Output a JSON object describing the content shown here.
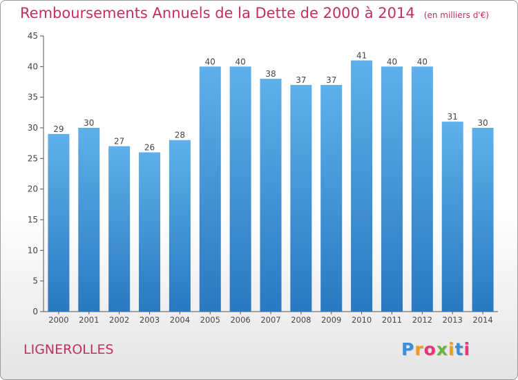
{
  "header": {
    "title": "Remboursements Annuels de la Dette de 2000 à 2014",
    "unit": "(en milliers d'€)"
  },
  "footer": {
    "commune": "LIGNEROLLES",
    "brand": [
      "P",
      "r",
      "o",
      "x",
      "i",
      "t",
      "i"
    ],
    "brand_colors": [
      "#3a8fd9",
      "#f19a1d",
      "#e8347a",
      "#6ab43e",
      "#f19a1d",
      "#3a8fd9",
      "#e8347a"
    ]
  },
  "colors": {
    "bar_top": "#5fb0ea",
    "bar_bottom": "#2a78c0",
    "title": "#c42f5c"
  },
  "chart_data": {
    "type": "bar",
    "title": "Remboursements Annuels de la Dette de 2000 à 2014",
    "categories": [
      "2000",
      "2001",
      "2002",
      "2003",
      "2004",
      "2005",
      "2006",
      "2007",
      "2008",
      "2009",
      "2010",
      "2011",
      "2012",
      "2013",
      "2014"
    ],
    "values": [
      29,
      30,
      27,
      26,
      28,
      40,
      40,
      38,
      37,
      37,
      41,
      40,
      40,
      31,
      30
    ],
    "ylim": [
      0,
      45
    ],
    "yticks": [
      0,
      5,
      10,
      15,
      20,
      25,
      30,
      35,
      40,
      45
    ],
    "grid": false,
    "data_labels": true
  }
}
